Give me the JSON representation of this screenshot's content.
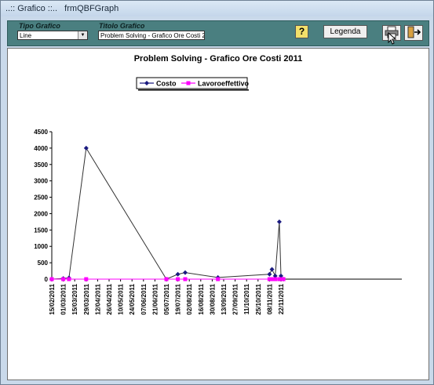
{
  "window": {
    "title": "..:: Grafico ::..   frmQBFGraph"
  },
  "toolbar": {
    "tipo_label": "Tipo Grafico",
    "tipo_value": "Line",
    "titolo_label": "Titolo Grafico",
    "titolo_value": "Problem Solving - Grafico Ore Costi 2011",
    "help_icon": "question-icon",
    "legenda_label": "Legenda",
    "print_icon": "printer-icon",
    "exit_icon": "exit-door-icon"
  },
  "chart_data": {
    "type": "line",
    "title": "Problem Solving - Grafico Ore Costi 2011",
    "xlabel": "",
    "ylabel": "",
    "ylim": [
      0,
      4500
    ],
    "yticks": [
      0,
      500,
      1000,
      1500,
      2000,
      2500,
      3000,
      3500,
      4000,
      4500
    ],
    "tick_labels": [
      "15/02/2011",
      "01/03/2011",
      "15/03/2011",
      "29/03/2011",
      "12/04/2011",
      "26/04/2011",
      "10/05/2011",
      "24/05/2011",
      "07/06/2011",
      "21/06/2011",
      "05/07/2011",
      "19/07/2011",
      "02/08/2011",
      "16/08/2011",
      "30/08/2011",
      "13/09/2011",
      "27/09/2011",
      "11/10/2011",
      "25/10/2011",
      "08/11/2011",
      "22/11/2011"
    ],
    "legend_position": "top-left",
    "grid": false,
    "series": [
      {
        "name": "Costo",
        "color": "#1a1a80",
        "marker": "diamond",
        "points": [
          {
            "x": "2011-02-15",
            "y": 0
          },
          {
            "x": "2011-03-01",
            "y": 20
          },
          {
            "x": "2011-03-08",
            "y": 40
          },
          {
            "x": "2011-03-29",
            "y": 4000
          },
          {
            "x": "2011-07-05",
            "y": 0
          },
          {
            "x": "2011-07-19",
            "y": 150
          },
          {
            "x": "2011-07-28",
            "y": 200
          },
          {
            "x": "2011-09-06",
            "y": 50
          },
          {
            "x": "2011-11-08",
            "y": 150
          },
          {
            "x": "2011-11-11",
            "y": 300
          },
          {
            "x": "2011-11-15",
            "y": 100
          },
          {
            "x": "2011-11-20",
            "y": 1750
          },
          {
            "x": "2011-11-22",
            "y": 100
          },
          {
            "x": "2011-11-25",
            "y": 0
          }
        ]
      },
      {
        "name": "Lavoroeffettivo",
        "color": "#ff00ff",
        "marker": "square",
        "points": [
          {
            "x": "2011-02-15",
            "y": 0
          },
          {
            "x": "2011-03-01",
            "y": 0
          },
          {
            "x": "2011-03-08",
            "y": 0
          },
          {
            "x": "2011-03-29",
            "y": 0
          },
          {
            "x": "2011-07-05",
            "y": 0
          },
          {
            "x": "2011-07-19",
            "y": 0
          },
          {
            "x": "2011-07-28",
            "y": 0
          },
          {
            "x": "2011-09-06",
            "y": 0
          },
          {
            "x": "2011-11-08",
            "y": 0
          },
          {
            "x": "2011-11-11",
            "y": 0
          },
          {
            "x": "2011-11-15",
            "y": 0
          },
          {
            "x": "2011-11-20",
            "y": 0
          },
          {
            "x": "2011-11-22",
            "y": 0
          },
          {
            "x": "2011-11-25",
            "y": 0
          }
        ]
      }
    ]
  }
}
